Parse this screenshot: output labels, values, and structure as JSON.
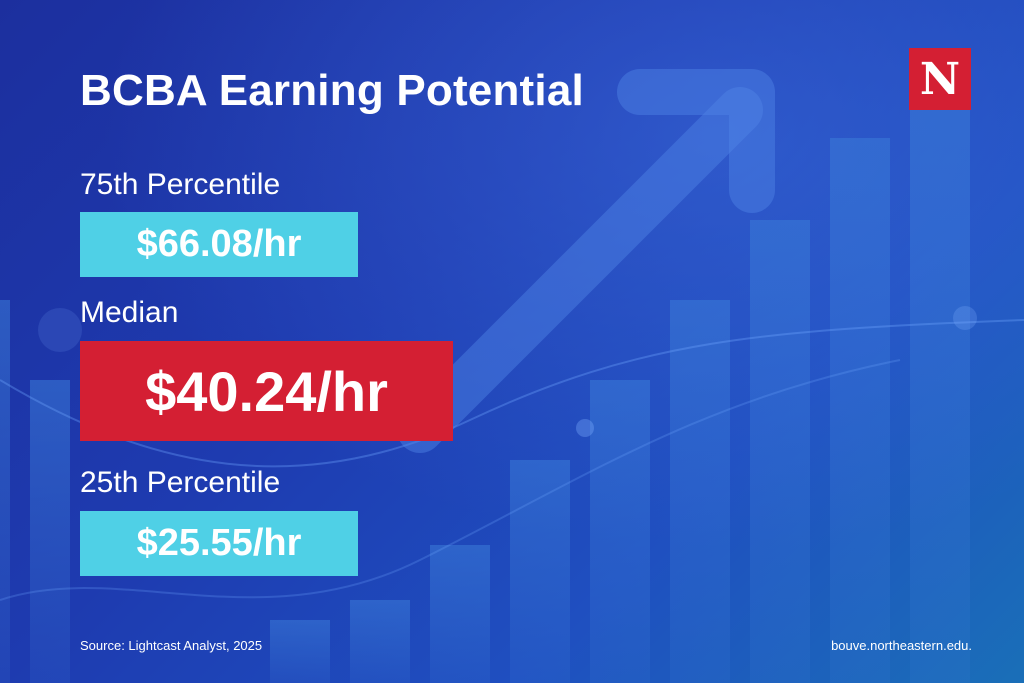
{
  "title": "BCBA Earning Potential",
  "logo_letter": "N",
  "stats": [
    {
      "label": "75th Percentile",
      "value": "$66.08/hr"
    },
    {
      "label": "Median",
      "value": "$40.24/hr"
    },
    {
      "label": "25th Percentile",
      "value": "$25.55/hr"
    }
  ],
  "footer": {
    "source": "Source: Lightcast Analyst, 2025",
    "site": "bouve.northeastern.edu."
  },
  "colors": {
    "background": "#1e3bb0",
    "cyan_box": "#4fd0e6",
    "red_box": "#d41f33",
    "logo": "#d41f33"
  },
  "icons": [
    "upward-arrow-icon",
    "bar-chart-decoration"
  ]
}
